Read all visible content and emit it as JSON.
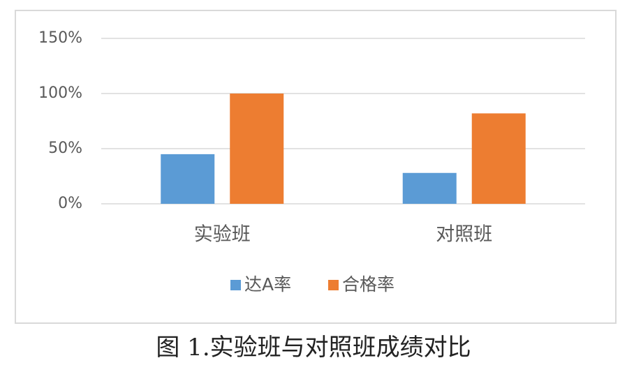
{
  "chart_data": {
    "type": "bar",
    "title": "图 1.实验班与对照班成绩对比",
    "categories": [
      "实验班",
      "对照班"
    ],
    "series": [
      {
        "name": "达A率",
        "color": "#5b9bd5",
        "values": [
          45,
          28
        ]
      },
      {
        "name": "合格率",
        "color": "#ed7d31",
        "values": [
          100,
          82
        ]
      }
    ],
    "ylim": [
      0,
      150
    ],
    "yticks": [
      {
        "value": 0,
        "label": "0%"
      },
      {
        "value": 50,
        "label": "50%"
      },
      {
        "value": 100,
        "label": "100%"
      },
      {
        "value": 150,
        "label": "150%"
      }
    ],
    "grid": true,
    "legend": "bottom"
  }
}
